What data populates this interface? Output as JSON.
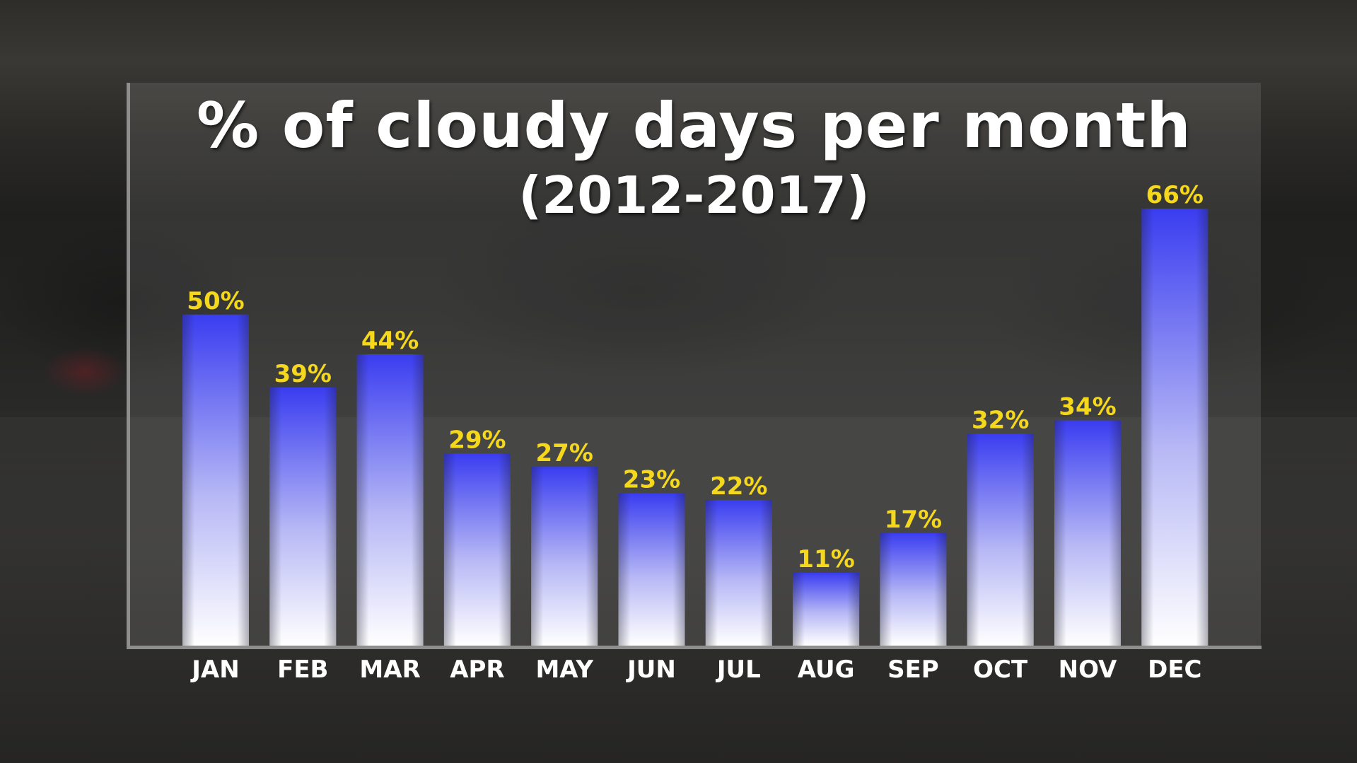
{
  "chart_data": {
    "type": "bar",
    "title": "% of cloudy days per month",
    "subtitle": "(2012-2017)",
    "categories": [
      "JAN",
      "FEB",
      "MAR",
      "APR",
      "MAY",
      "JUN",
      "JUL",
      "AUG",
      "SEP",
      "OCT",
      "NOV",
      "DEC"
    ],
    "values": [
      50,
      39,
      44,
      29,
      27,
      23,
      22,
      11,
      17,
      32,
      34,
      66
    ],
    "value_labels": [
      "50%",
      "39%",
      "44%",
      "29%",
      "27%",
      "23%",
      "22%",
      "11%",
      "17%",
      "32%",
      "34%",
      "66%"
    ],
    "xlabel": "",
    "ylabel": "",
    "ylim": [
      0,
      66
    ],
    "grid": false,
    "legend": "none",
    "colors": {
      "bar_top": "#3a3df0",
      "bar_bottom": "#ffffff",
      "value_label": "#f5d81c",
      "category_label": "#ffffff"
    }
  }
}
